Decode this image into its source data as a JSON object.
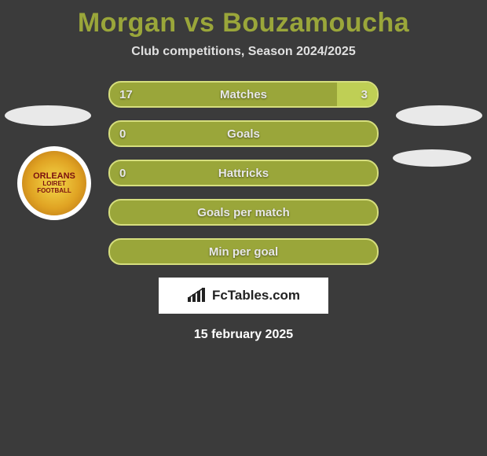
{
  "title": "Morgan vs Bouzamoucha",
  "subtitle": "Club competitions, Season 2024/2025",
  "subtitle_color": "#e0e0e0",
  "subtitle_fontsize": 16,
  "title_color": "#9aa63a",
  "bars": [
    {
      "label": "Matches",
      "left_val": "17",
      "right_val": "3",
      "left_pct": 85,
      "right_pct": 15,
      "right_color": "#bfcf55"
    },
    {
      "label": "Goals",
      "left_val": "0",
      "right_val": "",
      "left_pct": 100,
      "right_pct": 0,
      "right_color": "#bfcf55"
    },
    {
      "label": "Hattricks",
      "left_val": "0",
      "right_val": "",
      "left_pct": 100,
      "right_pct": 0,
      "right_color": "#bfcf55"
    },
    {
      "label": "Goals per match",
      "left_val": "",
      "right_val": "",
      "left_pct": 100,
      "right_pct": 0,
      "right_color": "#bfcf55"
    },
    {
      "label": "Min per goal",
      "left_val": "",
      "right_val": "",
      "left_pct": 100,
      "right_pct": 0,
      "right_color": "#bfcf55"
    }
  ],
  "bar_base_color": "#9aa63a",
  "bar_border_color": "#d6de7e",
  "bar_text_color": "#e8e8e8",
  "badge": {
    "line1": "ORLEANS",
    "line2": "LOIRET",
    "line3": "FOOTBALL"
  },
  "brand": "FcTables.com",
  "date": "15 february 2025",
  "background_color": "#3b3b3b",
  "ellipse_color": "#e9e9e9"
}
